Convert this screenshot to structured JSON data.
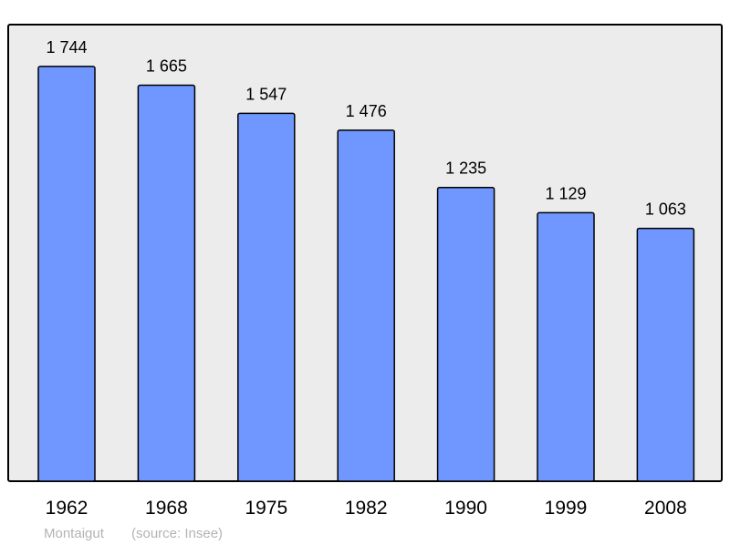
{
  "chart_data": {
    "type": "bar",
    "categories": [
      "1962",
      "1968",
      "1975",
      "1982",
      "1990",
      "1999",
      "2008"
    ],
    "values": [
      1744,
      1665,
      1547,
      1476,
      1235,
      1129,
      1063
    ],
    "value_labels": [
      "1 744",
      "1 665",
      "1 547",
      "1 476",
      "1 235",
      "1 129",
      "1 063"
    ],
    "title": "",
    "xlabel": "",
    "ylabel": "",
    "ylim": [
      0,
      1920
    ],
    "grid": false,
    "bar_color": "#7097ff",
    "background_color": "#ececec"
  },
  "footer": {
    "place": "Montaigut",
    "source": "(source: Insee)"
  }
}
